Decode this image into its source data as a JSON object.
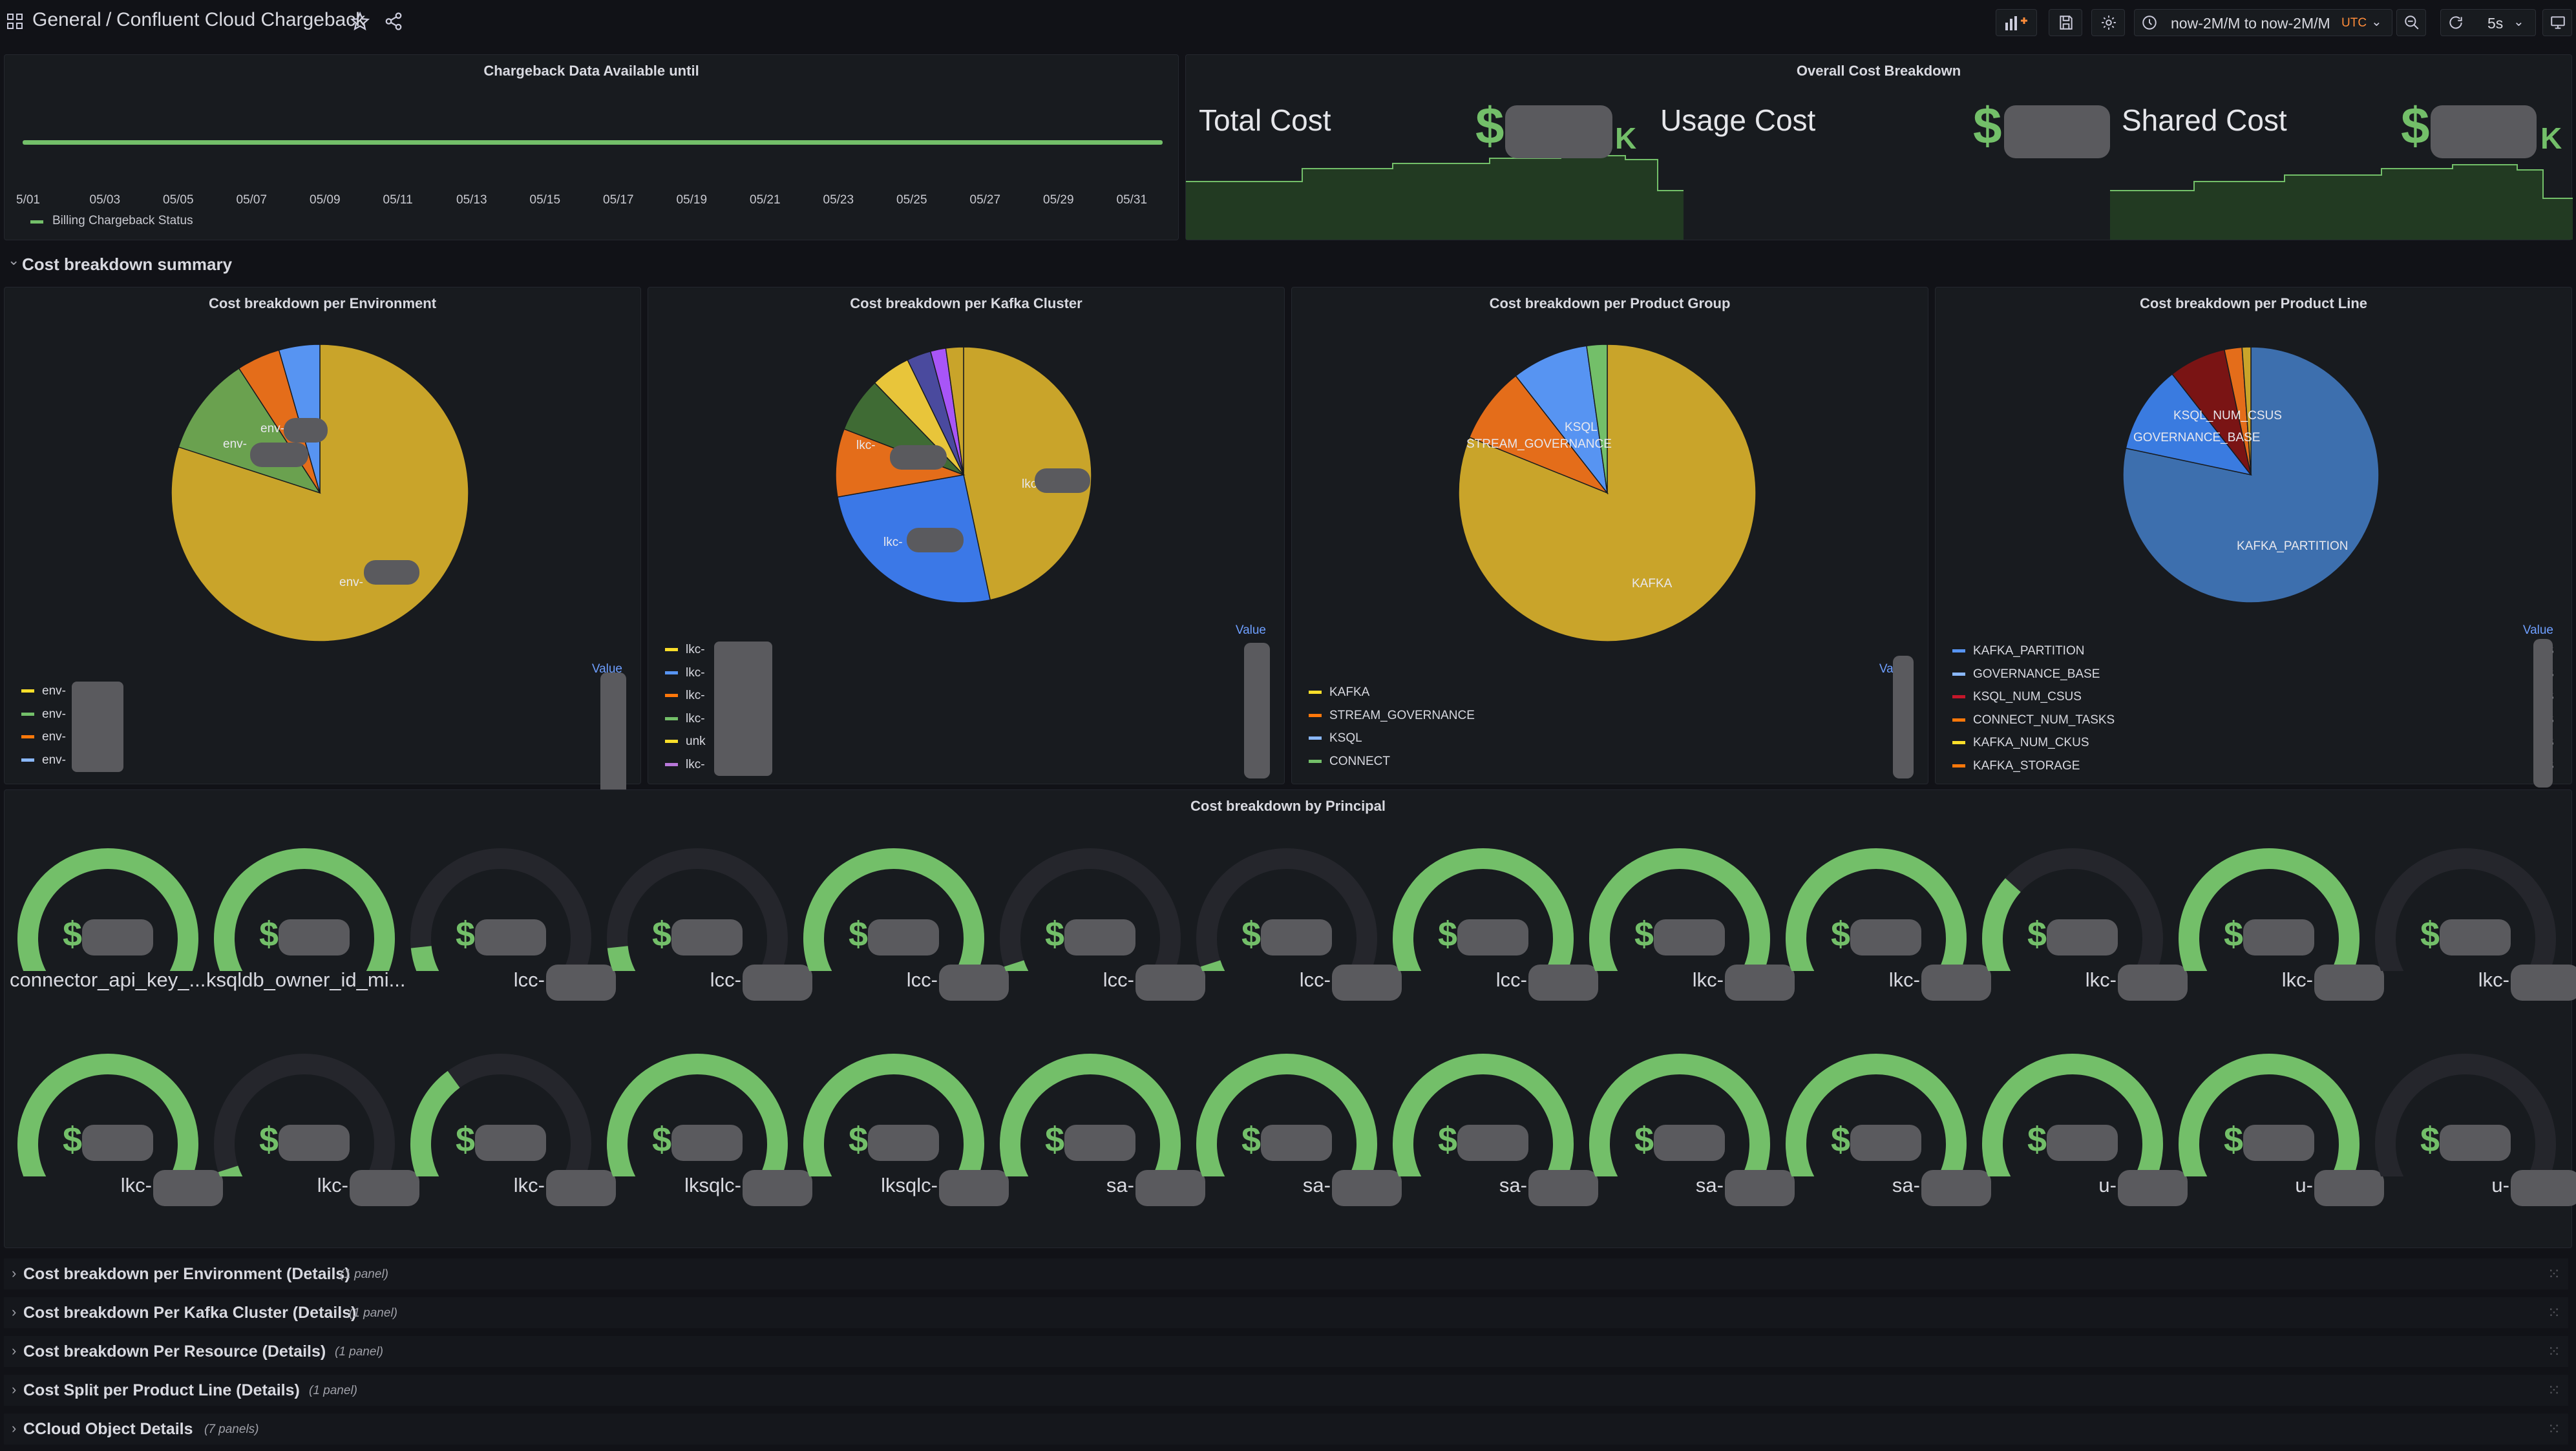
{
  "header": {
    "breadcrumb_root": "General",
    "breadcrumb_sep": "/",
    "dashboard_title": "Confluent Cloud Chargeback",
    "time_range": "now-2M/M to now-2M/M",
    "timezone": "UTC",
    "refresh_interval": "5s"
  },
  "availability_panel": {
    "title": "Chargeback Data Available until",
    "ticks": [
      "5/01",
      "05/03",
      "05/05",
      "05/07",
      "05/09",
      "05/11",
      "05/13",
      "05/15",
      "05/17",
      "05/19",
      "05/21",
      "05/23",
      "05/25",
      "05/27",
      "05/29",
      "05/31"
    ],
    "legend": "Billing Chargeback Status",
    "line_color": "#73bf69"
  },
  "overall_panel": {
    "title": "Overall Cost Breakdown",
    "stats": [
      {
        "label": "Total Cost",
        "prefix": "$",
        "suffix": "K"
      },
      {
        "label": "Usage Cost",
        "prefix": "$",
        "suffix": ""
      },
      {
        "label": "Shared Cost",
        "prefix": "$",
        "suffix": "K"
      }
    ]
  },
  "summary_row": {
    "title": "Cost breakdown summary"
  },
  "pies": [
    {
      "title": "Cost breakdown per Environment",
      "value_header": "Value",
      "slice_labels": [
        "env-",
        "env-",
        "env-"
      ],
      "legend": [
        "env-",
        "env-",
        "env-",
        "env-"
      ],
      "legend_values": [
        "$",
        "$",
        "$",
        "$"
      ],
      "legend_colors": [
        "#fade2a",
        "#73bf69",
        "#ff780a",
        "#8ab8ff"
      ]
    },
    {
      "title": "Cost breakdown per Kafka Cluster",
      "value_header": "Value",
      "slice_labels": [
        "lkc-",
        "lkc-",
        "lkc-"
      ],
      "legend": [
        "lkc-",
        "lkc-",
        "lkc-",
        "lkc-",
        "unk",
        "lkc-"
      ],
      "legend_values": [
        "$",
        "$",
        "$",
        "$",
        "$",
        "$"
      ],
      "legend_colors": [
        "#fade2a",
        "#5794f2",
        "#ff780a",
        "#73bf69",
        "#fade2a",
        "#b877d9"
      ]
    },
    {
      "title": "Cost breakdown per Product Group",
      "value_header": "Value",
      "slice_labels": [
        "KSQL",
        "STREAM_GOVERNANCE",
        "KAFKA"
      ],
      "legend": [
        "KAFKA",
        "STREAM_GOVERNANCE",
        "KSQL",
        "CONNECT"
      ],
      "legend_values": [
        "$",
        "$",
        "$",
        "$"
      ],
      "legend_colors": [
        "#fade2a",
        "#ff780a",
        "#8ab8ff",
        "#73bf69"
      ]
    },
    {
      "title": "Cost breakdown per Product Line",
      "value_header": "Value",
      "slice_labels": [
        "KSQL_NUM_CSUS",
        "GOVERNANCE_BASE",
        "KAFKA_PARTITION"
      ],
      "legend": [
        "KAFKA_PARTITION",
        "GOVERNANCE_BASE",
        "KSQL_NUM_CSUS",
        "CONNECT_NUM_TASKS",
        "KAFKA_NUM_CKUS",
        "KAFKA_STORAGE"
      ],
      "legend_values": [
        "$",
        "$",
        "$",
        "$",
        "$",
        "$"
      ],
      "legend_colors": [
        "#5794f2",
        "#8ab8ff",
        "#c4162a",
        "#ff780a",
        "#fade2a",
        "#ff780a"
      ]
    }
  ],
  "principal_panel": {
    "title": "Cost breakdown by Principal",
    "gauges": [
      {
        "name": "connector_api_key_...",
        "fill": 1.0
      },
      {
        "name": "ksqldb_owner_id_mi...",
        "fill": 1.0
      },
      {
        "name": "lcc-",
        "fill": 0.1
      },
      {
        "name": "lcc-",
        "fill": 0.1
      },
      {
        "name": "lcc-",
        "fill": 1.0
      },
      {
        "name": "lcc-",
        "fill": 0.05
      },
      {
        "name": "lcc-",
        "fill": 0.05
      },
      {
        "name": "lcc-",
        "fill": 1.0
      },
      {
        "name": "lkc-",
        "fill": 1.0
      },
      {
        "name": "lkc-",
        "fill": 1.0
      },
      {
        "name": "lkc-",
        "fill": 0.3
      },
      {
        "name": "lkc-",
        "fill": 1.0
      },
      {
        "name": "lkc-",
        "fill": 0.0
      },
      {
        "name": "lkc-",
        "fill": 1.0
      },
      {
        "name": "lkc-",
        "fill": 0.05
      },
      {
        "name": "lkc-",
        "fill": 0.35
      },
      {
        "name": "lksqlc-",
        "fill": 1.0
      },
      {
        "name": "lksqlc-",
        "fill": 1.0
      },
      {
        "name": "sa-",
        "fill": 1.0
      },
      {
        "name": "sa-",
        "fill": 1.0
      },
      {
        "name": "sa-",
        "fill": 1.0
      },
      {
        "name": "sa-",
        "fill": 1.0
      },
      {
        "name": "sa-",
        "fill": 1.0
      },
      {
        "name": "u-",
        "fill": 1.0
      },
      {
        "name": "u-",
        "fill": 1.0
      },
      {
        "name": "u-",
        "fill": 0.0
      }
    ],
    "gauge_prefix": "$"
  },
  "collapsed_rows": [
    {
      "title": "Cost breakdown per Environment (Details)",
      "sub": "(1 panel)"
    },
    {
      "title": "Cost breakdown Per Kafka Cluster (Details)",
      "sub": "(1 panel)"
    },
    {
      "title": "Cost breakdown Per Resource (Details)",
      "sub": "(1 panel)"
    },
    {
      "title": "Cost Split per Product Line (Details)",
      "sub": "(1 panel)"
    },
    {
      "title": "CCloud Object Details",
      "sub": "(7 panels)"
    }
  ],
  "colors": {
    "accent_green": "#73bf69",
    "gauge_track": "#25262c",
    "time_tz": "#ff8c3a"
  }
}
